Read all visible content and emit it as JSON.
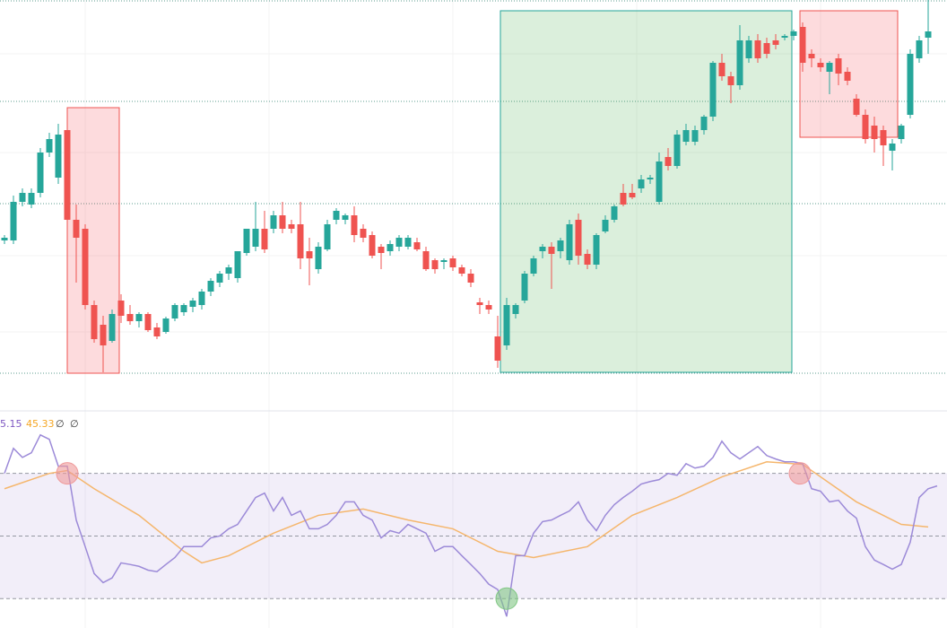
{
  "chart_data": [
    {
      "type": "candlestick",
      "up_color": "#26a69a",
      "down_color": "#ef5350",
      "ylim": [
        40,
        500
      ],
      "candles": [
        [
          232,
          238,
          228,
          235
        ],
        [
          232,
          282,
          228,
          275
        ],
        [
          275,
          290,
          270,
          285
        ],
        [
          272,
          290,
          268,
          285
        ],
        [
          285,
          335,
          280,
          330
        ],
        [
          330,
          352,
          325,
          345
        ],
        [
          302,
          362,
          295,
          350
        ],
        [
          355,
          375,
          250,
          255
        ],
        [
          255,
          272,
          185,
          235
        ],
        [
          245,
          250,
          155,
          160
        ],
        [
          160,
          165,
          118,
          122
        ],
        [
          138,
          148,
          85,
          115
        ],
        [
          120,
          155,
          118,
          150
        ],
        [
          165,
          172,
          140,
          148
        ],
        [
          150,
          160,
          138,
          142
        ],
        [
          142,
          152,
          135,
          150
        ],
        [
          150,
          152,
          130,
          132
        ],
        [
          135,
          140,
          122,
          125
        ],
        [
          130,
          147,
          128,
          145
        ],
        [
          145,
          162,
          142,
          160
        ],
        [
          152,
          162,
          148,
          160
        ],
        [
          158,
          168,
          152,
          165
        ],
        [
          160,
          178,
          155,
          175
        ],
        [
          175,
          190,
          170,
          187
        ],
        [
          185,
          198,
          180,
          195
        ],
        [
          195,
          205,
          188,
          202
        ],
        [
          190,
          220,
          185,
          220
        ],
        [
          218,
          245,
          215,
          245
        ],
        [
          225,
          275,
          220,
          245
        ],
        [
          245,
          265,
          218,
          222
        ],
        [
          245,
          265,
          240,
          260
        ],
        [
          260,
          275,
          240,
          245
        ],
        [
          250,
          255,
          240,
          245
        ],
        [
          250,
          275,
          200,
          212
        ],
        [
          220,
          235,
          182,
          212
        ],
        [
          200,
          230,
          195,
          225
        ],
        [
          222,
          255,
          220,
          250
        ],
        [
          255,
          268,
          250,
          265
        ],
        [
          255,
          262,
          250,
          260
        ],
        [
          260,
          270,
          230,
          238
        ],
        [
          245,
          250,
          230,
          235
        ],
        [
          238,
          242,
          212,
          215
        ],
        [
          225,
          228,
          200,
          218
        ],
        [
          220,
          232,
          215,
          228
        ],
        [
          225,
          238,
          220,
          235
        ],
        [
          225,
          238,
          222,
          235
        ],
        [
          230,
          235,
          220,
          222
        ],
        [
          220,
          225,
          198,
          200
        ],
        [
          210,
          212,
          195,
          200
        ],
        [
          208,
          212,
          200,
          210
        ],
        [
          212,
          215,
          198,
          202
        ],
        [
          202,
          205,
          192,
          195
        ],
        [
          195,
          200,
          180,
          185
        ],
        [
          163,
          168,
          150,
          160
        ],
        [
          160,
          165,
          150,
          155
        ],
        [
          125,
          148,
          90,
          98
        ],
        [
          115,
          168,
          110,
          160
        ],
        [
          150,
          162,
          145,
          160
        ],
        [
          165,
          198,
          162,
          195
        ],
        [
          195,
          215,
          192,
          212
        ],
        [
          220,
          228,
          212,
          225
        ],
        [
          225,
          230,
          178,
          217
        ],
        [
          220,
          235,
          212,
          232
        ],
        [
          210,
          255,
          205,
          250
        ],
        [
          255,
          262,
          205,
          215
        ],
        [
          217,
          222,
          200,
          205
        ],
        [
          205,
          240,
          200,
          238
        ],
        [
          242,
          260,
          240,
          255
        ],
        [
          255,
          272,
          252,
          270
        ],
        [
          285,
          295,
          270,
          272
        ],
        [
          285,
          295,
          278,
          280
        ],
        [
          290,
          305,
          285,
          300
        ],
        [
          300,
          305,
          295,
          302
        ],
        [
          275,
          330,
          272,
          320
        ],
        [
          325,
          335,
          310,
          315
        ],
        [
          315,
          355,
          312,
          350
        ],
        [
          342,
          362,
          338,
          355
        ],
        [
          342,
          360,
          338,
          355
        ],
        [
          355,
          372,
          350,
          370
        ],
        [
          370,
          432,
          365,
          430
        ],
        [
          430,
          440,
          410,
          415
        ],
        [
          415,
          420,
          385,
          405
        ],
        [
          405,
          472,
          400,
          455
        ],
        [
          435,
          460,
          430,
          455
        ],
        [
          455,
          462,
          430,
          435
        ],
        [
          452,
          458,
          435,
          440
        ],
        [
          455,
          462,
          445,
          450
        ],
        [
          458,
          462,
          455,
          460
        ],
        [
          460,
          467,
          455,
          465
        ],
        [
          470,
          475,
          420,
          430
        ],
        [
          440,
          445,
          425,
          435
        ],
        [
          430,
          435,
          420,
          425
        ],
        [
          420,
          432,
          395,
          430
        ],
        [
          435,
          440,
          405,
          418
        ],
        [
          420,
          425,
          405,
          410
        ],
        [
          390,
          395,
          370,
          372
        ],
        [
          372,
          378,
          340,
          345
        ],
        [
          360,
          370,
          330,
          345
        ],
        [
          355,
          360,
          315,
          338
        ],
        [
          332,
          345,
          310,
          340
        ],
        [
          345,
          362,
          340,
          360
        ],
        [
          372,
          445,
          368,
          440
        ],
        [
          435,
          460,
          430,
          455
        ],
        [
          458,
          500,
          440,
          465
        ]
      ]
    },
    {
      "type": "line",
      "ylim": [
        20.6,
        89.4
      ],
      "levels": [
        30,
        50,
        70
      ],
      "band_color": "#7e57c2",
      "legend": [
        "5.15",
        "45.33",
        "∅",
        "∅"
      ],
      "series": [
        {
          "color": "#9c8ad8",
          "values": [
            70,
            78,
            75.1,
            76.6,
            82.3,
            80.9,
            72.3,
            72.3,
            55.1,
            46.6,
            38,
            35.1,
            36.6,
            41.4,
            40.9,
            40.3,
            39.1,
            38.6,
            40.9,
            43.1,
            46.6,
            46.6,
            46.6,
            49.4,
            50,
            52.3,
            53.7,
            58,
            62.3,
            63.7,
            58,
            62.3,
            56.6,
            58,
            52.3,
            52.3,
            53.7,
            56.6,
            60.9,
            60.9,
            56.6,
            55.1,
            49.4,
            51.7,
            50.9,
            53.7,
            52.3,
            50.9,
            45.1,
            46.6,
            46.6,
            43.7,
            40.9,
            38,
            34.6,
            32.9,
            24.3,
            43.7,
            43.7,
            50.9,
            54.6,
            55.1,
            56.6,
            58,
            60.9,
            55.1,
            51.7,
            56.6,
            60,
            62.3,
            64.3,
            66.6,
            67.4,
            68,
            70,
            69.4,
            73.1,
            71.7,
            72.3,
            75.1,
            80.3,
            76.6,
            74.6,
            76.6,
            78.6,
            75.7,
            74.6,
            73.7,
            73.7,
            73.1,
            65.1,
            64.3,
            60.9,
            61.4,
            58,
            55.7,
            46.6,
            42.3,
            40.9,
            39.4,
            40.9,
            48,
            62.3,
            65.1,
            66
          ]
        },
        {
          "color": "#f5b66c",
          "x": [
            0,
            5,
            7,
            10,
            15,
            20,
            22,
            25,
            30,
            35,
            40,
            45,
            50,
            55,
            59,
            65,
            70,
            75,
            80,
            85,
            89,
            95,
            100,
            103
          ],
          "values": [
            65.1,
            70,
            70.9,
            65.1,
            56.6,
            45.1,
            41.4,
            43.7,
            50.9,
            56.6,
            58.6,
            55.1,
            52.3,
            45.1,
            43.1,
            46.6,
            56.6,
            62.3,
            68.9,
            73.7,
            72.9,
            60.9,
            53.7,
            52.9
          ]
        }
      ],
      "signals": [
        {
          "x": 7,
          "value": 70,
          "color": "#ef9a9a"
        },
        {
          "x": 56,
          "value": 30,
          "color": "#81c784"
        },
        {
          "x": 88.7,
          "value": 70,
          "color": "#ef9a9a"
        }
      ]
    }
  ]
}
